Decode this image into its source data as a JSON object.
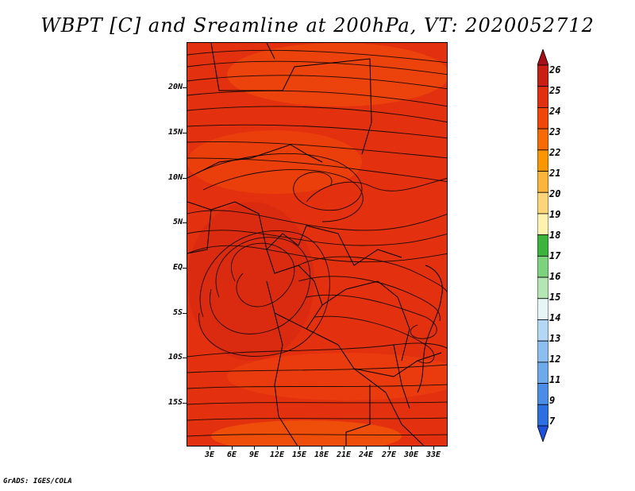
{
  "title": "WBPT [C] and Sreamline at 200hPa, VT: 2020052712",
  "footer": "GrADS: IGES/COLA",
  "map": {
    "lat_labels": [
      "20N",
      "15N",
      "10N",
      "5N",
      "EQ",
      "5S",
      "10S",
      "15S"
    ],
    "lon_labels": [
      "3E",
      "6E",
      "9E",
      "12E",
      "15E",
      "18E",
      "21E",
      "24E",
      "27E",
      "30E",
      "33E"
    ]
  },
  "colorbar": {
    "labels": [
      "26",
      "25",
      "24",
      "23",
      "22",
      "21",
      "20",
      "19",
      "18",
      "17",
      "16",
      "15",
      "14",
      "13",
      "12",
      "11",
      "9",
      "7"
    ],
    "colors": [
      "#a50f15",
      "#c81e14",
      "#e1300f",
      "#f0460a",
      "#f76a06",
      "#fb9500",
      "#fbb43c",
      "#fcd57a",
      "#fdf3b0",
      "#3cb43c",
      "#7dd27d",
      "#b4e6b4",
      "#e6f5f5",
      "#b4d7f5",
      "#8cbef0",
      "#6eaaeb",
      "#4b8ce6",
      "#2d6ee1",
      "#1e50dc"
    ]
  }
}
